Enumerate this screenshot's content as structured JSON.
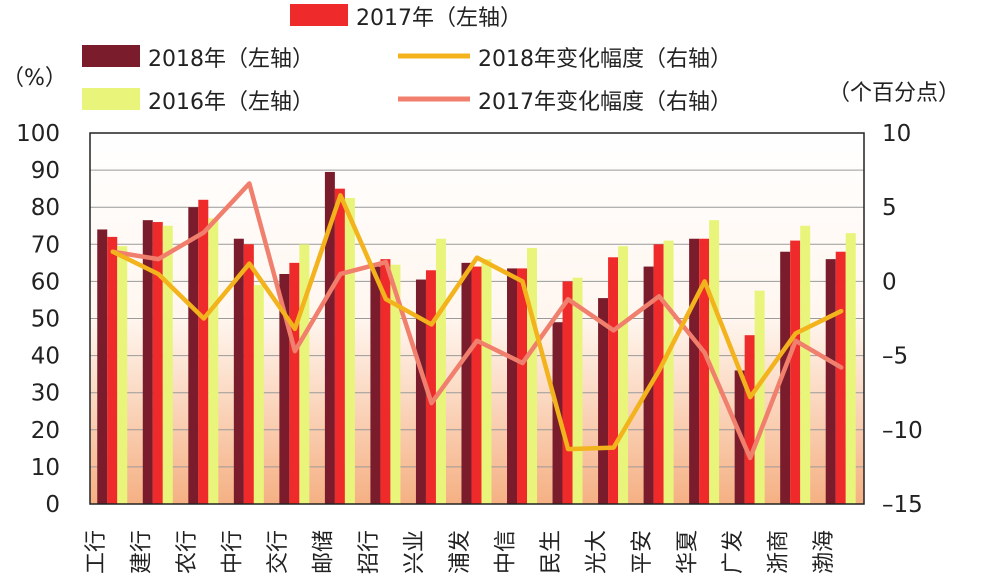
{
  "chart_data": {
    "type": "bar",
    "categories": [
      "工行",
      "建行",
      "农行",
      "中行",
      "交行",
      "邮储",
      "招行",
      "兴业",
      "浦发",
      "中信",
      "民生",
      "光大",
      "平安",
      "华夏",
      "广发",
      "浙商",
      "渤海"
    ],
    "series": [
      {
        "name": "2018年（左轴）",
        "type": "bar",
        "axis": "left",
        "color": "#7a1c2c",
        "values": [
          74,
          76.5,
          80,
          71.5,
          62,
          89.5,
          64,
          60.5,
          65,
          63.5,
          49,
          55.5,
          64,
          71.5,
          36,
          68,
          66
        ]
      },
      {
        "name": "2017年（左轴）",
        "type": "bar",
        "axis": "left",
        "color": "#ee2a2a",
        "values": [
          72,
          76,
          82,
          70,
          65,
          85,
          66,
          63,
          64,
          63.5,
          60,
          66.5,
          70,
          71.5,
          45.5,
          71,
          68
        ]
      },
      {
        "name": "2016年（左轴）",
        "type": "bar",
        "axis": "left",
        "color": "#e8f57a",
        "values": [
          69.5,
          75,
          77,
          59,
          70,
          82.5,
          64.5,
          71.5,
          66,
          69,
          61,
          69.5,
          71,
          76.5,
          57.5,
          75,
          73
        ]
      },
      {
        "name": "2018年变化幅度（右轴）",
        "type": "line",
        "axis": "right",
        "color": "#f2b31c",
        "values": [
          2,
          0.5,
          -2.5,
          1.2,
          -3.2,
          5.8,
          -1.2,
          -2.9,
          1.6,
          0,
          -11.3,
          -11.2,
          -6,
          0,
          -7.8,
          -3.5,
          -2
        ]
      },
      {
        "name": "2017年变化幅度（右轴）",
        "type": "line",
        "axis": "right",
        "color": "#f07f6e",
        "values": [
          2,
          1.5,
          3.3,
          6.6,
          -4.7,
          0.5,
          1.3,
          -8.2,
          -4,
          -5.5,
          -1.2,
          -3.3,
          -1,
          -4.8,
          -11.9,
          -4,
          -5.8
        ]
      }
    ],
    "y_left": {
      "label": "（%）",
      "ylim": [
        0,
        100
      ],
      "ticks": [
        "100",
        "90",
        "80",
        "70",
        "60",
        "50",
        "40",
        "30",
        "20",
        "10",
        "0"
      ]
    },
    "y_right": {
      "label": "（个百分点）",
      "ylim": [
        -15,
        10
      ],
      "ticks": [
        "10",
        "5",
        "0",
        "–5",
        "–10",
        "–15"
      ]
    },
    "grid": true
  }
}
